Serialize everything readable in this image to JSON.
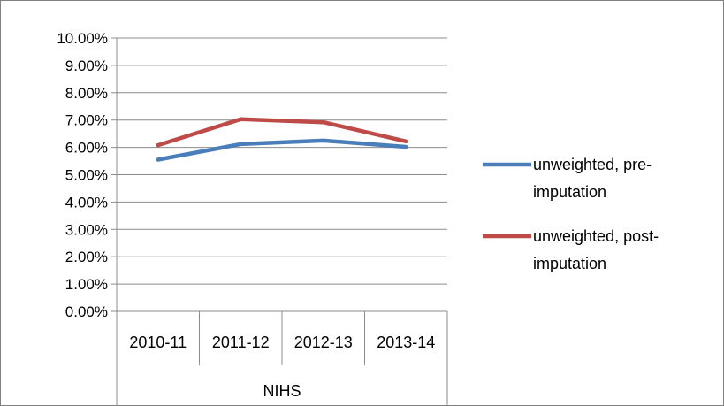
{
  "chart_data": {
    "type": "line",
    "title": "",
    "xlabel": "",
    "ylabel": "",
    "categories": [
      "2010-11",
      "2011-12",
      "2012-13",
      "2013-14"
    ],
    "group_label": "NIHS",
    "y_ticks": [
      "0.00%",
      "1.00%",
      "2.00%",
      "3.00%",
      "4.00%",
      "5.00%",
      "6.00%",
      "7.00%",
      "8.00%",
      "9.00%",
      "10.00%"
    ],
    "ylim": [
      0,
      10
    ],
    "y_unit": "%",
    "grid": true,
    "legend_position": "right",
    "series": [
      {
        "name_lines": [
          "unweighted, pre-",
          "imputation"
        ],
        "values": [
          5.55,
          6.12,
          6.25,
          6.02
        ],
        "color": "#4a7ebb"
      },
      {
        "name_lines": [
          "unweighted, post-",
          "imputation"
        ],
        "values": [
          6.08,
          7.03,
          6.92,
          6.22
        ],
        "color": "#be4b48"
      }
    ]
  }
}
